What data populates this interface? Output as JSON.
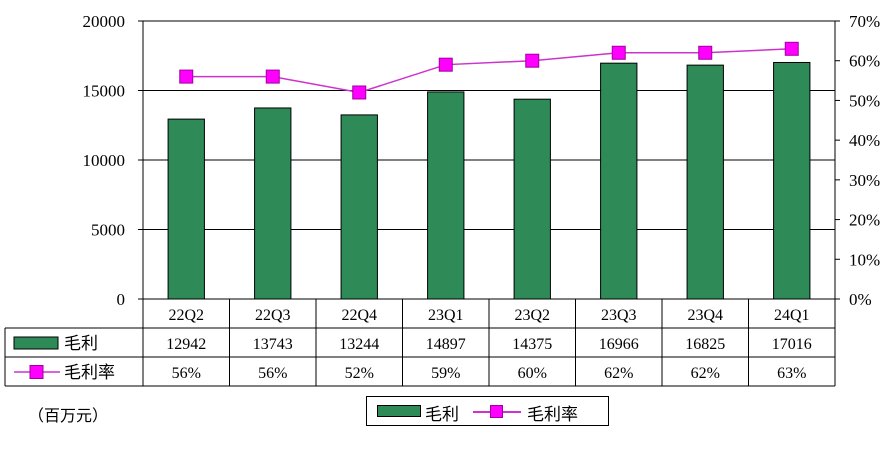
{
  "unit_note": "（百万元）",
  "legend": {
    "bar_label": "毛利",
    "line_label": "毛利率"
  },
  "colors": {
    "bar": "#2e8b57",
    "line": "#cc33cc",
    "marker": "#ff00ff"
  },
  "chart_data": {
    "type": "bar",
    "categories": [
      "22Q2",
      "22Q3",
      "22Q4",
      "23Q1",
      "23Q2",
      "23Q3",
      "23Q4",
      "24Q1"
    ],
    "series": [
      {
        "name": "毛利",
        "type": "bar",
        "axis": "left",
        "values": [
          12942,
          13743,
          13244,
          14897,
          14375,
          16966,
          16825,
          17016
        ]
      },
      {
        "name": "毛利率",
        "type": "line",
        "axis": "right",
        "values": [
          56,
          56,
          52,
          59,
          60,
          62,
          62,
          63
        ],
        "labels": [
          "56%",
          "56%",
          "52%",
          "59%",
          "60%",
          "62%",
          "62%",
          "63%"
        ]
      }
    ],
    "y_left": {
      "lim": [
        0,
        20000
      ],
      "ticks": [
        "0",
        "5000",
        "10000",
        "15000",
        "20000"
      ]
    },
    "y_right": {
      "lim": [
        0,
        70
      ],
      "ticks": [
        "0%",
        "10%",
        "20%",
        "30%",
        "40%",
        "50%",
        "60%",
        "70%"
      ]
    },
    "grid": true,
    "legend_position": "bottom",
    "data_table": true
  }
}
